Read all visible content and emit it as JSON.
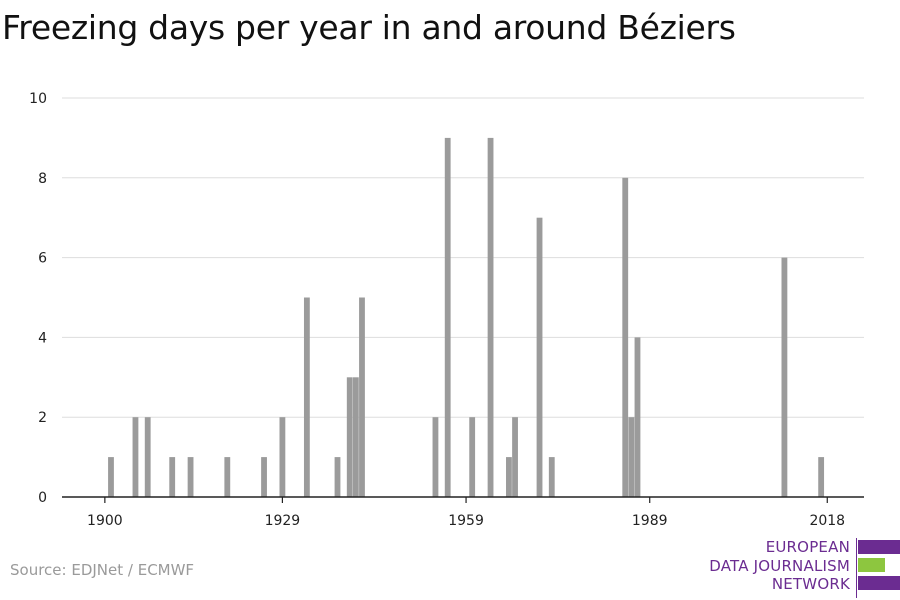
{
  "title": "Freezing days per year in and around Béziers",
  "source": "Source: EDJNet / ECMWF",
  "logo": {
    "lines": [
      "EUROPEAN",
      "DATA JOURNALISM",
      "NETWORK"
    ],
    "colors": {
      "purple": "#6b2c91",
      "green": "#8dc63f"
    }
  },
  "chart_data": {
    "type": "bar",
    "title": "Freezing days per year in and around Béziers",
    "xlabel": "",
    "ylabel": "",
    "xlim": [
      1893,
      2024
    ],
    "ylim": [
      0,
      10
    ],
    "x_ticks": [
      1900,
      1929,
      1959,
      1989,
      2018
    ],
    "y_ticks": [
      0,
      2,
      4,
      6,
      8,
      10
    ],
    "grid": true,
    "bar_color": "#9b9b9b",
    "series": [
      {
        "x": [
          1901,
          1905,
          1907,
          1911,
          1914,
          1920,
          1926,
          1929,
          1933,
          1938,
          1940,
          1941,
          1942,
          1954,
          1956,
          1960,
          1963,
          1966,
          1967,
          1971,
          1973,
          1985,
          1986,
          1987,
          2011,
          2017
        ],
        "values": [
          1,
          2,
          2,
          1,
          1,
          1,
          1,
          2,
          5,
          1,
          3,
          3,
          5,
          2,
          9,
          2,
          9,
          1,
          2,
          7,
          1,
          8,
          2,
          4,
          6,
          1
        ]
      }
    ]
  }
}
